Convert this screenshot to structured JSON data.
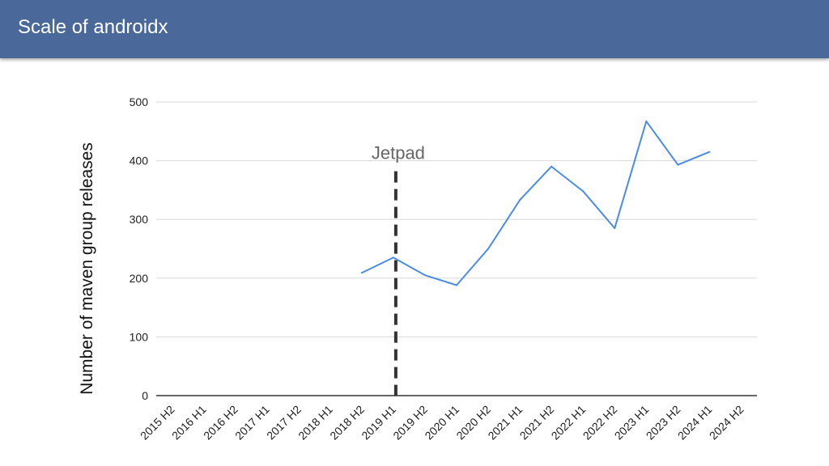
{
  "header": {
    "title": "Scale of androidx"
  },
  "colors": {
    "header_bg": "#4a6899",
    "line": "#4a8be8",
    "marker": "#333333"
  },
  "chart_data": {
    "type": "line",
    "title": "",
    "xlabel": "",
    "ylabel": "Number of maven group releases",
    "categories": [
      "2015 H2",
      "2016 H1",
      "2016 H2",
      "2017 H1",
      "2017 H2",
      "2018 H1",
      "2018 H2",
      "2019 H1",
      "2019 H2",
      "2020 H1",
      "2020 H2",
      "2021 H1",
      "2021 H2",
      "2022 H1",
      "2022 H2",
      "2023 H1",
      "2023 H2",
      "2024 H1",
      "2024 H2"
    ],
    "series": [
      {
        "values": [
          null,
          null,
          null,
          null,
          null,
          null,
          209,
          235,
          205,
          188,
          250,
          333,
          390,
          348,
          285,
          467,
          393,
          415,
          null
        ]
      }
    ],
    "ylim": [
      0,
      500
    ],
    "yticks": [
      0,
      100,
      200,
      300,
      400,
      500
    ],
    "grid": true,
    "annotations": [
      {
        "label": "Jetpad",
        "x": "2019 H1",
        "style": "dashed-vertical"
      }
    ]
  }
}
